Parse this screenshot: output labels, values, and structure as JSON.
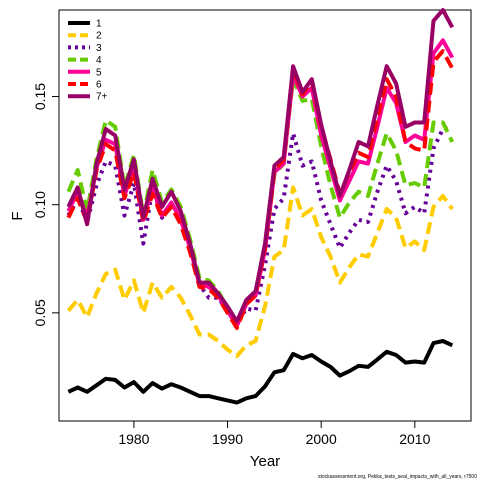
{
  "chart_data": {
    "type": "line",
    "title": "",
    "xlabel": "Year",
    "ylabel": "F",
    "xlim": [
      1972,
      2016
    ],
    "ylim": [
      0.0,
      0.19
    ],
    "x_ticks": [
      1980,
      1990,
      2000,
      2010
    ],
    "y_ticks": [
      0.05,
      0.1,
      0.15
    ],
    "y_tick_labels": [
      "0.05",
      "0.10",
      "0.15"
    ],
    "grid": false,
    "legend_position": "top-left",
    "credit": "stockassessment.org, Pekka_tests_seal_impacts_with_all_years, r7500",
    "x": [
      1973,
      1974,
      1975,
      1976,
      1977,
      1978,
      1979,
      1980,
      1981,
      1982,
      1983,
      1984,
      1985,
      1986,
      1987,
      1988,
      1989,
      1990,
      1991,
      1992,
      1993,
      1994,
      1995,
      1996,
      1997,
      1998,
      1999,
      2000,
      2001,
      2002,
      2003,
      2004,
      2005,
      2006,
      2007,
      2008,
      2009,
      2010,
      2011,
      2012,
      2013,
      2014
    ],
    "series": [
      {
        "name": "1",
        "color": "#000000",
        "dash": "solid",
        "values": [
          0.0135,
          0.0155,
          0.0135,
          0.0165,
          0.0195,
          0.019,
          0.0155,
          0.018,
          0.0135,
          0.0175,
          0.015,
          0.017,
          0.0155,
          0.0135,
          0.0115,
          0.0115,
          0.0105,
          0.0095,
          0.0085,
          0.0105,
          0.0115,
          0.016,
          0.0225,
          0.0235,
          0.031,
          0.029,
          0.0305,
          0.0275,
          0.025,
          0.021,
          0.023,
          0.0255,
          0.025,
          0.0285,
          0.032,
          0.0305,
          0.027,
          0.0275,
          0.027,
          0.036,
          0.037,
          0.035
        ]
      },
      {
        "name": "2",
        "color": "#ffcc00",
        "dash": "dash",
        "values": [
          0.051,
          0.056,
          0.048,
          0.059,
          0.068,
          0.07,
          0.056,
          0.065,
          0.05,
          0.064,
          0.057,
          0.062,
          0.057,
          0.049,
          0.04,
          0.04,
          0.037,
          0.033,
          0.03,
          0.035,
          0.037,
          0.053,
          0.076,
          0.079,
          0.108,
          0.095,
          0.098,
          0.085,
          0.076,
          0.064,
          0.071,
          0.077,
          0.076,
          0.087,
          0.098,
          0.094,
          0.08,
          0.083,
          0.079,
          0.099,
          0.104,
          0.098
        ]
      },
      {
        "name": "3",
        "color": "#660099",
        "dash": "dot",
        "values": [
          0.095,
          0.103,
          0.092,
          0.109,
          0.12,
          0.118,
          0.095,
          0.11,
          0.082,
          0.108,
          0.094,
          0.101,
          0.093,
          0.081,
          0.063,
          0.057,
          0.057,
          0.051,
          0.045,
          0.052,
          0.051,
          0.072,
          0.098,
          0.103,
          0.133,
          0.118,
          0.12,
          0.102,
          0.091,
          0.08,
          0.087,
          0.093,
          0.092,
          0.106,
          0.118,
          0.111,
          0.096,
          0.099,
          0.096,
          0.126,
          0.135,
          0.136
        ]
      },
      {
        "name": "4",
        "color": "#66cc00",
        "dash": "dash",
        "values": [
          0.106,
          0.116,
          0.097,
          0.121,
          0.139,
          0.136,
          0.108,
          0.123,
          0.095,
          0.116,
          0.101,
          0.107,
          0.099,
          0.084,
          0.066,
          0.065,
          0.06,
          0.052,
          0.046,
          0.055,
          0.059,
          0.079,
          0.114,
          0.119,
          0.158,
          0.148,
          0.149,
          0.127,
          0.109,
          0.094,
          0.101,
          0.106,
          0.104,
          0.119,
          0.133,
          0.125,
          0.109,
          0.11,
          0.108,
          0.138,
          0.138,
          0.129
        ]
      },
      {
        "name": "5",
        "color": "#ff0099",
        "dash": "solid",
        "values": [
          0.097,
          0.106,
          0.094,
          0.117,
          0.13,
          0.128,
          0.104,
          0.118,
          0.093,
          0.108,
          0.095,
          0.101,
          0.093,
          0.08,
          0.063,
          0.062,
          0.058,
          0.051,
          0.044,
          0.054,
          0.058,
          0.079,
          0.115,
          0.119,
          0.16,
          0.15,
          0.154,
          0.132,
          0.117,
          0.102,
          0.111,
          0.12,
          0.119,
          0.136,
          0.154,
          0.147,
          0.129,
          0.132,
          0.13,
          0.17,
          0.176,
          0.168
        ]
      },
      {
        "name": "6",
        "color": "#ff0000",
        "dash": "dash",
        "values": [
          0.094,
          0.103,
          0.092,
          0.116,
          0.128,
          0.125,
          0.103,
          0.115,
          0.092,
          0.105,
          0.094,
          0.099,
          0.091,
          0.078,
          0.062,
          0.061,
          0.057,
          0.05,
          0.043,
          0.054,
          0.058,
          0.08,
          0.116,
          0.121,
          0.163,
          0.151,
          0.157,
          0.136,
          0.121,
          0.105,
          0.115,
          0.124,
          0.122,
          0.14,
          0.158,
          0.15,
          0.129,
          0.126,
          0.125,
          0.166,
          0.171,
          0.163
        ]
      },
      {
        "name": "7+",
        "color": "#990066",
        "dash": "solid",
        "values": [
          0.099,
          0.108,
          0.091,
          0.119,
          0.135,
          0.132,
          0.107,
          0.121,
          0.094,
          0.112,
          0.099,
          0.106,
          0.097,
          0.082,
          0.064,
          0.064,
          0.059,
          0.053,
          0.046,
          0.056,
          0.06,
          0.082,
          0.118,
          0.122,
          0.164,
          0.152,
          0.158,
          0.137,
          0.12,
          0.104,
          0.116,
          0.129,
          0.127,
          0.146,
          0.164,
          0.156,
          0.136,
          0.138,
          0.138,
          0.185,
          0.19,
          0.182
        ]
      }
    ]
  }
}
